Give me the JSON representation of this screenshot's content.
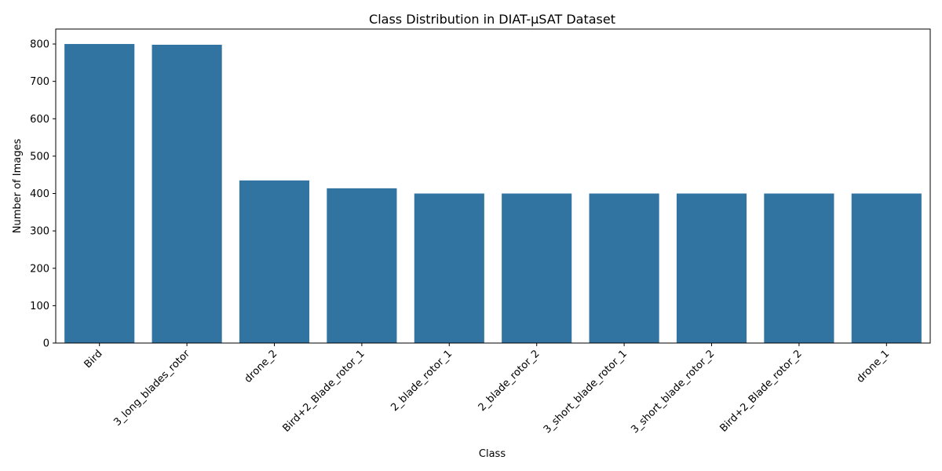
{
  "chart_data": {
    "type": "bar",
    "title": "Class Distribution in DIAT-μSAT Dataset",
    "xlabel": "Class",
    "ylabel": "Number of Images",
    "categories": [
      "Bird",
      "3_long_blades_rotor",
      "drone_2",
      "Bird+2_Blade_rotor_1",
      "2_blade_rotor_1",
      "2_blade_rotor_2",
      "3_short_blade_rotor_1",
      "3_short_blade_rotor_2",
      "Bird+2_Blade_rotor_2",
      "drone_1"
    ],
    "values": [
      800,
      798,
      435,
      414,
      400,
      400,
      400,
      400,
      400,
      400
    ],
    "ylim": [
      0,
      840
    ],
    "yticks": [
      0,
      100,
      200,
      300,
      400,
      500,
      600,
      700,
      800
    ],
    "grid": false,
    "bar_color": "#3274a1"
  }
}
